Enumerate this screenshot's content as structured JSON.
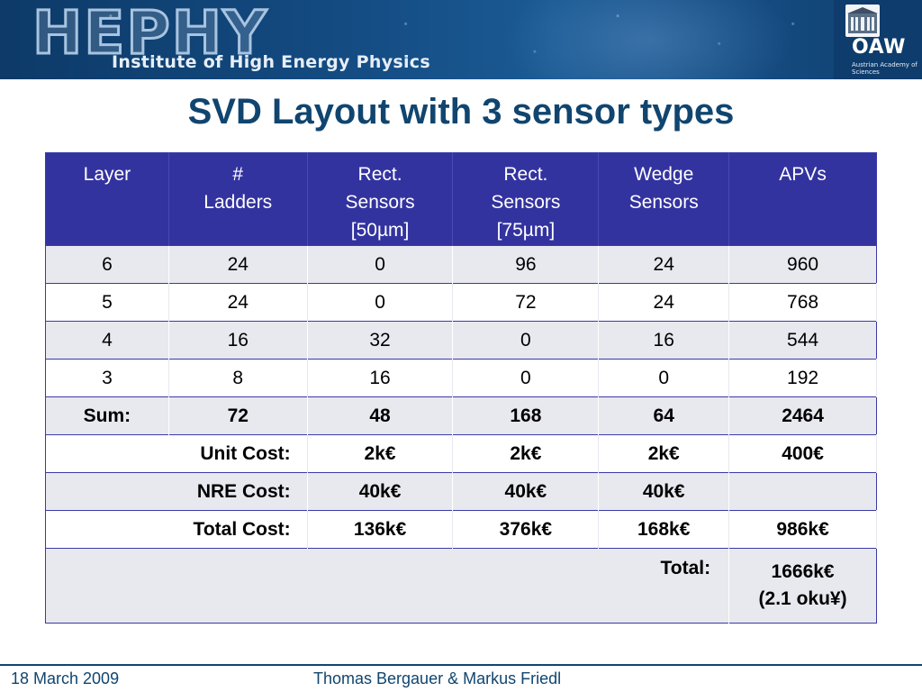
{
  "header": {
    "logo_text": "HEPHY",
    "institute": "Institute of High Energy Physics",
    "partner_logo": "OAW",
    "partner_subtitle": "Austrian Academy of Sciences"
  },
  "title": "SVD Layout with 3 sensor types",
  "table": {
    "headers": [
      "Layer",
      "# Ladders",
      "Rect. Sensors [50µm]",
      "Rect. Sensors [75µm]",
      "Wedge Sensors",
      "APVs"
    ],
    "headers_lines": [
      [
        "Layer"
      ],
      [
        "#",
        "Ladders"
      ],
      [
        "Rect.",
        "Sensors",
        "[50µm]"
      ],
      [
        "Rect.",
        "Sensors",
        "[75µm]"
      ],
      [
        "Wedge",
        "Sensors"
      ],
      [
        "APVs"
      ]
    ],
    "rows": [
      [
        "6",
        "24",
        "0",
        "96",
        "24",
        "960"
      ],
      [
        "5",
        "24",
        "0",
        "72",
        "24",
        "768"
      ],
      [
        "4",
        "16",
        "32",
        "0",
        "16",
        "544"
      ],
      [
        "3",
        "8",
        "16",
        "0",
        "0",
        "192"
      ]
    ],
    "sum_row": [
      "Sum:",
      "72",
      "48",
      "168",
      "64",
      "2464"
    ],
    "unit_cost": {
      "label": "Unit Cost:",
      "values": [
        "2k€",
        "2k€",
        "2k€",
        "400€"
      ]
    },
    "nre_cost": {
      "label": "NRE Cost:",
      "values": [
        "40k€",
        "40k€",
        "40k€",
        ""
      ]
    },
    "total_cost": {
      "label": "Total Cost:",
      "values": [
        "136k€",
        "376k€",
        "168k€",
        "986k€"
      ]
    },
    "grand_total": {
      "label": "Total:",
      "value_line1": "1666k€",
      "value_line2": "(2.1 oku¥)"
    }
  },
  "footer": {
    "date": "18 March 2009",
    "authors": "Thomas Bergauer & Markus Friedl"
  },
  "colors": {
    "banner": "#134a80",
    "title": "#10456f",
    "table_header": "#3333a0",
    "row_shade": "#e8e8ef"
  }
}
